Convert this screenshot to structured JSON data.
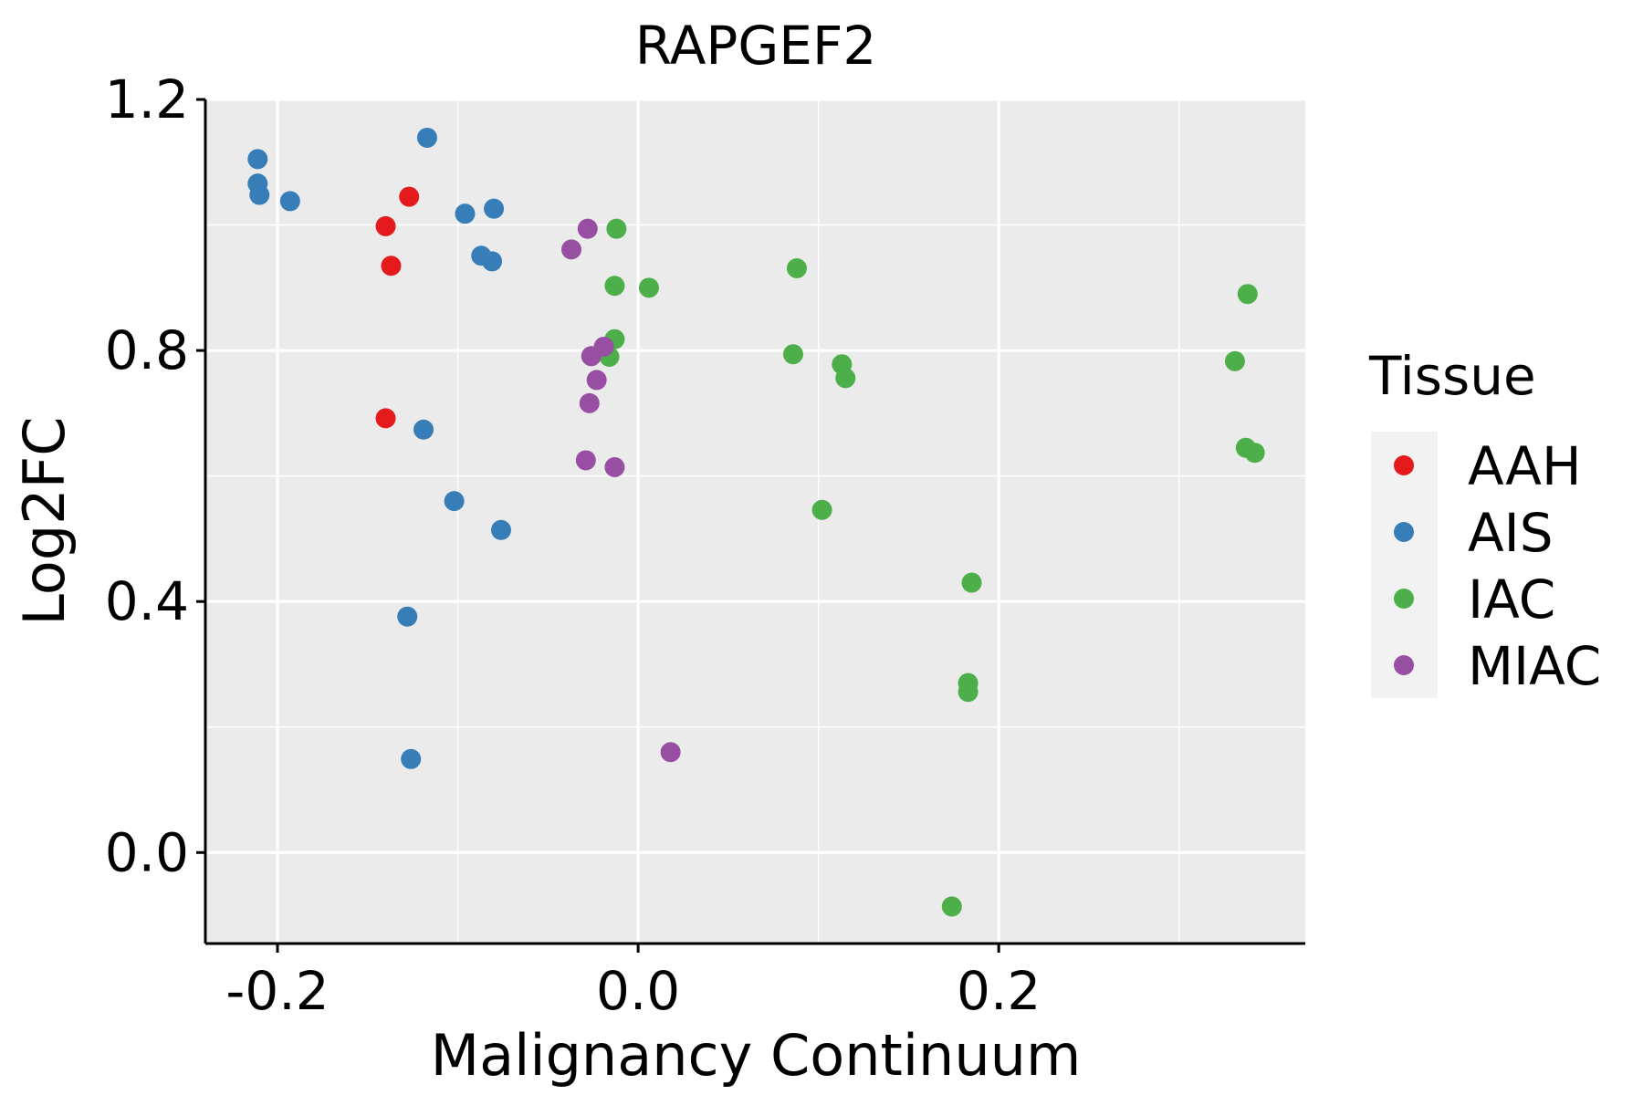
{
  "chart_data": {
    "type": "scatter",
    "title": "RAPGEF2",
    "xlabel": "Malignancy Continuum",
    "ylabel": "Log2FC",
    "xlim": [
      -0.24,
      0.37
    ],
    "ylim": [
      -0.145,
      1.2
    ],
    "x_ticks": [
      -0.2,
      0.0,
      0.2
    ],
    "x_tick_labels": [
      "-0.2",
      "0.0",
      "0.2"
    ],
    "y_ticks": [
      0.0,
      0.4,
      0.8,
      1.2
    ],
    "y_tick_labels": [
      "0.0",
      "0.4",
      "0.8",
      "1.2"
    ],
    "x_minor_gridlines": [
      -0.1,
      0.1,
      0.3
    ],
    "y_minor_gridlines": [
      0.2,
      0.6,
      1.0
    ],
    "grid": true,
    "panel_background": "#EBEBEB",
    "legend": {
      "title": "Tissue",
      "position": "right",
      "entries": [
        "AAH",
        "AIS",
        "IAC",
        "MIAC"
      ]
    },
    "series": [
      {
        "name": "AAH",
        "color": "#E41A1C",
        "points": [
          {
            "x": -0.127,
            "y": 1.045
          },
          {
            "x": -0.14,
            "y": 0.998
          },
          {
            "x": -0.137,
            "y": 0.935
          },
          {
            "x": -0.14,
            "y": 0.692
          }
        ]
      },
      {
        "name": "AIS",
        "color": "#377EB8",
        "points": [
          {
            "x": -0.211,
            "y": 1.105
          },
          {
            "x": -0.211,
            "y": 1.066
          },
          {
            "x": -0.21,
            "y": 1.048
          },
          {
            "x": -0.193,
            "y": 1.038
          },
          {
            "x": -0.117,
            "y": 1.139
          },
          {
            "x": -0.096,
            "y": 1.018
          },
          {
            "x": -0.08,
            "y": 1.026
          },
          {
            "x": -0.087,
            "y": 0.951
          },
          {
            "x": -0.081,
            "y": 0.942
          },
          {
            "x": -0.119,
            "y": 0.674
          },
          {
            "x": -0.102,
            "y": 0.56
          },
          {
            "x": -0.076,
            "y": 0.514
          },
          {
            "x": -0.128,
            "y": 0.376
          },
          {
            "x": -0.126,
            "y": 0.149
          }
        ]
      },
      {
        "name": "IAC",
        "color": "#4DAF4A",
        "points": [
          {
            "x": -0.012,
            "y": 0.994
          },
          {
            "x": -0.013,
            "y": 0.903
          },
          {
            "x": 0.006,
            "y": 0.9
          },
          {
            "x": 0.088,
            "y": 0.931
          },
          {
            "x": -0.016,
            "y": 0.79
          },
          {
            "x": -0.013,
            "y": 0.818
          },
          {
            "x": 0.086,
            "y": 0.794
          },
          {
            "x": 0.113,
            "y": 0.778
          },
          {
            "x": 0.115,
            "y": 0.756
          },
          {
            "x": 0.102,
            "y": 0.546
          },
          {
            "x": 0.185,
            "y": 0.43
          },
          {
            "x": 0.183,
            "y": 0.27
          },
          {
            "x": 0.183,
            "y": 0.256
          },
          {
            "x": 0.174,
            "y": -0.086
          },
          {
            "x": 0.338,
            "y": 0.89
          },
          {
            "x": 0.331,
            "y": 0.783
          },
          {
            "x": 0.337,
            "y": 0.645
          },
          {
            "x": 0.342,
            "y": 0.637
          }
        ]
      },
      {
        "name": "MIAC",
        "color": "#984EA3",
        "points": [
          {
            "x": -0.028,
            "y": 0.994
          },
          {
            "x": -0.037,
            "y": 0.961
          },
          {
            "x": -0.019,
            "y": 0.806
          },
          {
            "x": -0.026,
            "y": 0.791
          },
          {
            "x": -0.023,
            "y": 0.753
          },
          {
            "x": -0.027,
            "y": 0.716
          },
          {
            "x": -0.029,
            "y": 0.625
          },
          {
            "x": -0.013,
            "y": 0.614
          },
          {
            "x": 0.018,
            "y": 0.16
          }
        ]
      }
    ]
  }
}
